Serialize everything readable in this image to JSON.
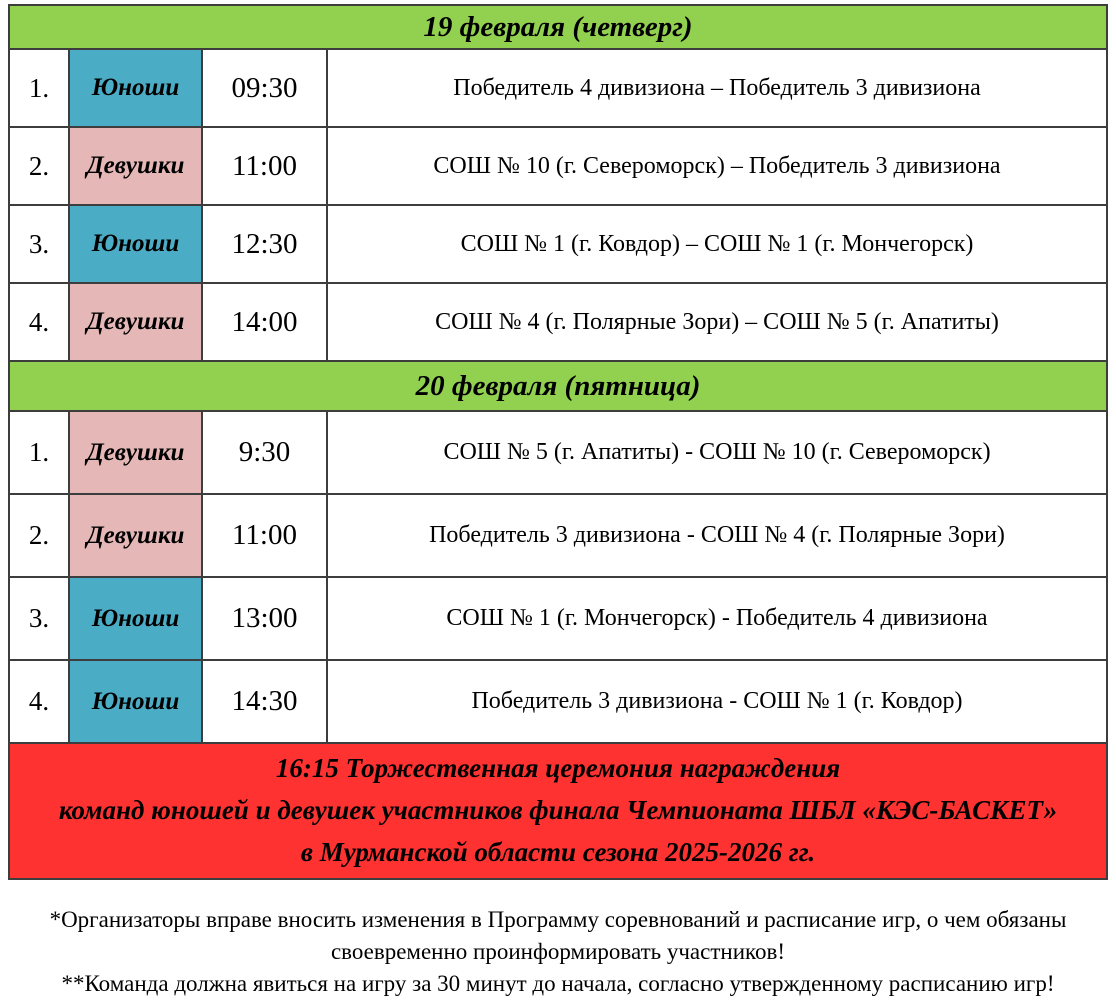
{
  "colors": {
    "day_header_green": "#92d050",
    "boys_blue": "#4bacc6",
    "girls_pink": "#e5b8b7",
    "ceremony_red": "#ff3232",
    "table_border": "#3d3d3d",
    "text": "#000000"
  },
  "schedule": {
    "days": [
      {
        "title": "19 февраля (четверг)",
        "games": [
          {
            "num": "1.",
            "gender": "Юноши",
            "gender_type": "boys",
            "time": "09:30",
            "match": "Победитель 4 дивизиона – Победитель 3 дивизиона"
          },
          {
            "num": "2.",
            "gender": "Девушки",
            "gender_type": "girls",
            "time": "11:00",
            "match": "СОШ № 10 (г. Североморск) – Победитель 3 дивизиона"
          },
          {
            "num": "3.",
            "gender": "Юноши",
            "gender_type": "boys",
            "time": "12:30",
            "match": "СОШ № 1 (г. Ковдор) – СОШ № 1 (г. Мончегорск)"
          },
          {
            "num": "4.",
            "gender": "Девушки",
            "gender_type": "girls",
            "time": "14:00",
            "match": "СОШ № 4 (г. Полярные Зори) – СОШ № 5 (г. Апатиты)"
          }
        ]
      },
      {
        "title": "20 февраля (пятница)",
        "games": [
          {
            "num": "1.",
            "gender": "Девушки",
            "gender_type": "girls",
            "time": "9:30",
            "match": "СОШ № 5 (г. Апатиты) - СОШ № 10 (г. Североморск)"
          },
          {
            "num": "2.",
            "gender": "Девушки",
            "gender_type": "girls",
            "time": "11:00",
            "match": "Победитель 3 дивизиона - СОШ № 4 (г. Полярные Зори)"
          },
          {
            "num": "3.",
            "gender": "Юноши",
            "gender_type": "boys",
            "time": "13:00",
            "match": "СОШ № 1 (г. Мончегорск) - Победитель 4 дивизиона"
          },
          {
            "num": "4.",
            "gender": "Юноши",
            "gender_type": "boys",
            "time": "14:30",
            "match": "Победитель 3 дивизиона - СОШ № 1 (г. Ковдор)"
          }
        ]
      }
    ],
    "ceremony": {
      "lines": [
        "16:15 Торжественная церемония награждения",
        "команд юношей и девушек участников финала Чемпионата ШБЛ «КЭС-БАСКЕТ»",
        "в Мурманской области сезона 2025-2026 гг."
      ]
    },
    "footnotes": [
      "*Организаторы вправе вносить изменения в Программу соревнований и расписание игр, о чем обязаны своевременно проинформировать участников!",
      "**Команда должна явиться на игру за 30 минут до начала, согласно утвержденному расписанию игр!"
    ]
  }
}
